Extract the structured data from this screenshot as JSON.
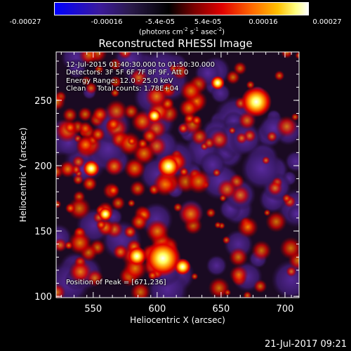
{
  "colorbar": {
    "ticks": [
      "-0.00027",
      "-0.00016",
      "-5.4e-05",
      "5.4e-05",
      "0.00016",
      "0.00027"
    ],
    "units_text": "(photons cm",
    "units_exp1": "-2",
    "units_mid": " s",
    "units_exp2": "-1",
    "units_end": " asec",
    "units_exp3": "-2",
    "units_close": ")"
  },
  "chart_data": {
    "type": "heatmap",
    "title": "Reconstructed RHESSI Image",
    "xlabel": "Heliocentric X (arcsec)",
    "ylabel": "Heliocentric Y (arcsec)",
    "xlim": [
      521,
      711
    ],
    "ylim": [
      99,
      287
    ],
    "xticks": [
      "550",
      "600",
      "650",
      "700"
    ],
    "yticks": [
      "100",
      "150",
      "200",
      "250"
    ],
    "vmin": -0.00027,
    "vmax": 0.00027,
    "peak": [
      671,
      236
    ],
    "annotations": {
      "line1": "12-Jul-2015 01:40:30.000 to 01:50:30.000",
      "line2": "Detectors: 3F 5F 6F 7F 8F 9F, Att 0",
      "line3": "Energy Range: 12.0 - 25.0 keV",
      "line4": "Clean     Total counts: 1.78E+04",
      "peak_text": "Position of Peak = [671,236]"
    },
    "colors": [
      "#0000ff",
      "#4b0082",
      "#6a2a9e",
      "#000000",
      "#8b0000",
      "#ff0000",
      "#ff8c00",
      "#ffff00",
      "#ffffff"
    ]
  },
  "footer": {
    "date": "21-Jul-2017 09:21"
  }
}
